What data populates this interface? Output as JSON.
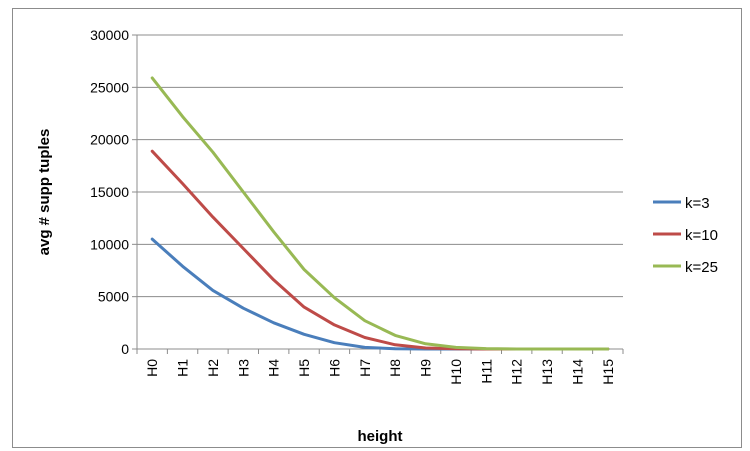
{
  "chart_data": {
    "type": "line",
    "title": "",
    "xlabel": "height",
    "ylabel": "avg # supp tuples",
    "categories": [
      "H0",
      "H1",
      "H2",
      "H3",
      "H4",
      "H5",
      "H6",
      "H7",
      "H8",
      "H9",
      "H10",
      "H11",
      "H12",
      "H13",
      "H14",
      "H15"
    ],
    "yticks": [
      0,
      5000,
      10000,
      15000,
      20000,
      25000,
      30000
    ],
    "ylim": [
      0,
      30000
    ],
    "grid": true,
    "legend_position": "right",
    "series": [
      {
        "name": "k=3",
        "color": "#4a7ebb",
        "values": [
          10500,
          7900,
          5600,
          3900,
          2500,
          1400,
          600,
          150,
          30,
          0,
          0,
          0,
          0,
          0,
          0,
          0
        ]
      },
      {
        "name": "k=10",
        "color": "#be4b48",
        "values": [
          18900,
          15800,
          12600,
          9600,
          6600,
          4000,
          2300,
          1100,
          400,
          100,
          30,
          0,
          0,
          0,
          0,
          0
        ]
      },
      {
        "name": "k=25",
        "color": "#98b954",
        "values": [
          25900,
          22200,
          18800,
          15000,
          11200,
          7600,
          4900,
          2700,
          1300,
          500,
          150,
          40,
          0,
          0,
          0,
          0
        ]
      }
    ]
  }
}
